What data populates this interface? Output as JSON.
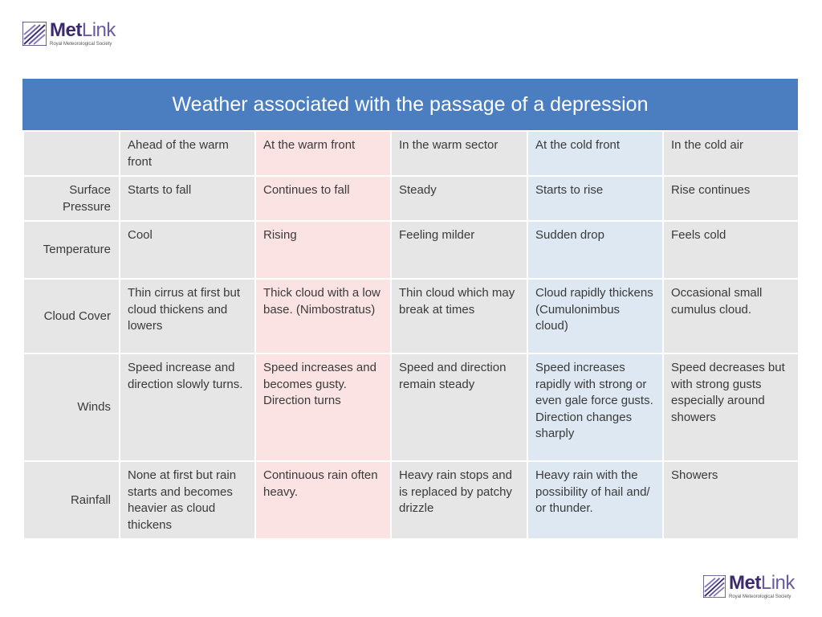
{
  "logo": {
    "brand_bold": "Met",
    "brand_light": "Link",
    "subtitle": "Royal Meteorological Society",
    "icon": "metlink-wave-icon"
  },
  "table": {
    "title": "Weather associated with the passage of a depression",
    "columns": [
      "Ahead of the warm front",
      "At the warm front",
      "In the warm sector",
      "At the cold front",
      "In the cold air"
    ],
    "rows": [
      {
        "label": "Surface Pressure",
        "cells": [
          "Starts to fall",
          "Continues to fall",
          "Steady",
          "Starts to rise",
          "Rise continues"
        ]
      },
      {
        "label": "Temperature",
        "cells": [
          "Cool",
          "Rising",
          "Feeling milder",
          "Sudden drop",
          "Feels cold"
        ]
      },
      {
        "label": "Cloud Cover",
        "cells": [
          "Thin cirrus at first but cloud thickens and lowers",
          "Thick cloud with a low base. (Nimbostratus)",
          "Thin cloud which may break at times",
          "Cloud rapidly thickens (Cumulonimbus cloud)",
          "Occasional small cumulus cloud."
        ]
      },
      {
        "label": "Winds",
        "cells": [
          "Speed increase and direction slowly turns.",
          "Speed increases and becomes gusty. Direction turns",
          "Speed and direction remain steady",
          "Speed increases rapidly with strong or even gale force gusts.",
          "Speed decreases but with strong gusts especially around showers"
        ]
      },
      {
        "label": "Rainfall",
        "cells": [
          "None at first but rain starts and becomes heavier as cloud thickens",
          "Continuous rain often heavy.",
          "Heavy rain stops and is replaced by patchy drizzle",
          "Heavy rain with the possibility of hail and/ or thunder.",
          "Showers"
        ]
      }
    ],
    "extra_lines": {
      "winds_cold_front": "Direction changes sharply"
    }
  }
}
